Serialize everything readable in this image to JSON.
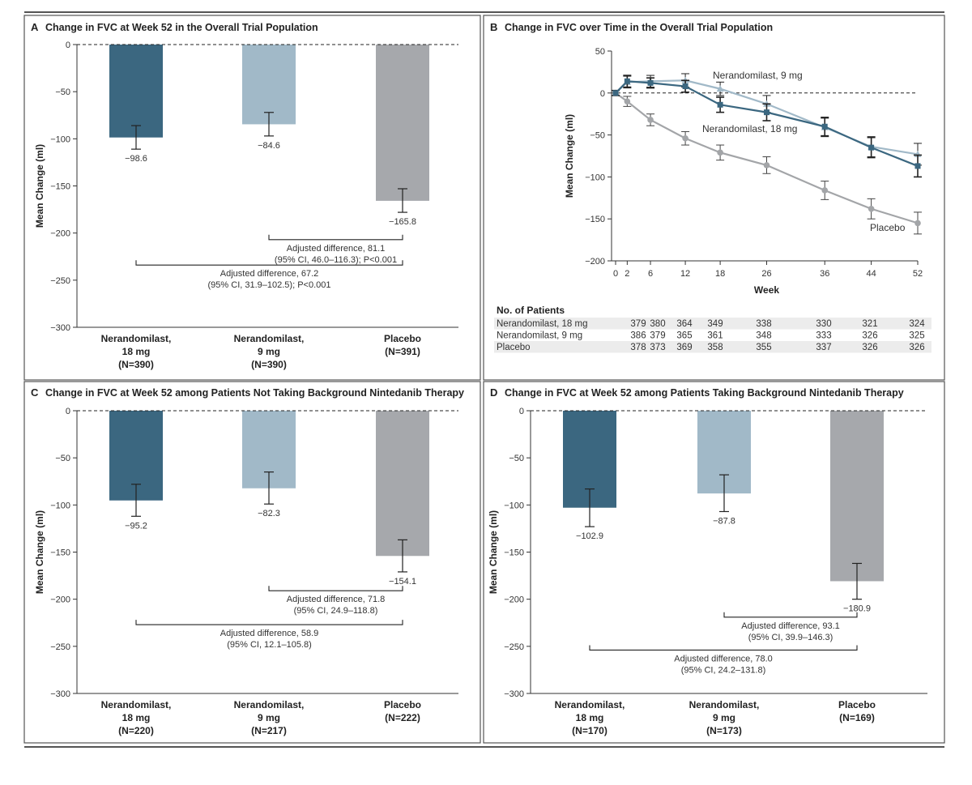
{
  "colors": {
    "nerandomilast_18": "#3b6780",
    "nerandomilast_9": "#a1b9c8",
    "placebo": "#a6a8ac",
    "placebo_line": "#a3a5a8",
    "panel_border": "#555555",
    "rule": "#555555"
  },
  "chart_data": [
    {
      "id": "A",
      "type": "bar",
      "letter": "A",
      "title": "Change in FVC at Week 52 in the Overall Trial Population",
      "ylabel": "Mean Change (ml)",
      "ylim": [
        -300,
        0
      ],
      "yticks": [
        0,
        -50,
        -100,
        -150,
        -200,
        -250,
        -300
      ],
      "ytick_labels": [
        "0",
        "−50",
        "−100",
        "−150",
        "−200",
        "−250",
        "−300"
      ],
      "grid": false,
      "categories": [
        {
          "line1": "Nerandomilast,",
          "line2": "18 mg",
          "line3": "(N=390)"
        },
        {
          "line1": "Nerandomilast,",
          "line2": "9 mg",
          "line3": "(N=390)"
        },
        {
          "line1": "Placebo",
          "line2": "(N=391)",
          "line3": ""
        }
      ],
      "values": [
        -98.6,
        -84.6,
        -165.8
      ],
      "value_labels": [
        "−98.6",
        "−84.6",
        "−165.8"
      ],
      "error": [
        [
          -111,
          -86
        ],
        [
          -97,
          -72
        ],
        [
          -178,
          -153
        ]
      ],
      "comparisons": [
        {
          "from": 1,
          "to": 2,
          "line1": "Adjusted difference, 81.1",
          "line2": "(95% CI, 46.0–116.3); P<0.001",
          "at": -207
        },
        {
          "from": 0,
          "to": 2,
          "line1": "Adjusted difference, 67.2",
          "line2": "(95% CI, 31.9–102.5); P<0.001",
          "at": -234
        }
      ]
    },
    {
      "id": "B",
      "type": "line",
      "letter": "B",
      "title": "Change in FVC over Time in the Overall Trial Population",
      "xlabel": "Week",
      "ylabel": "Mean Change (ml)",
      "xlim": [
        0,
        52
      ],
      "ylim": [
        -200,
        50
      ],
      "xticks": [
        0,
        2,
        6,
        12,
        18,
        26,
        36,
        44,
        52
      ],
      "yticks": [
        50,
        0,
        -50,
        -100,
        -150,
        -200
      ],
      "ytick_labels": [
        "50",
        "0",
        "−50",
        "−100",
        "−150",
        "−200"
      ],
      "x": [
        0,
        2,
        6,
        12,
        18,
        26,
        36,
        44,
        52
      ],
      "series": [
        {
          "name": "Nerandomilast, 18 mg",
          "label": "Nerandomilast, 18 mg",
          "marker": "square",
          "values": [
            0,
            14,
            12,
            8,
            -14,
            -23,
            -40,
            -65,
            -87
          ],
          "err": [
            3,
            7,
            6,
            7,
            9,
            10,
            11,
            12,
            13
          ]
        },
        {
          "name": "Nerandomilast, 9 mg",
          "label": "Nerandomilast, 9 mg",
          "marker": "triangle",
          "values": [
            0,
            13,
            14,
            15,
            5,
            -13,
            -41,
            -64,
            -73
          ],
          "err": [
            3,
            7,
            7,
            8,
            8,
            10,
            11,
            12,
            13
          ]
        },
        {
          "name": "Placebo",
          "label": "Placebo",
          "marker": "circle",
          "values": [
            0,
            -10,
            -32,
            -54,
            -71,
            -86,
            -116,
            -138,
            -155
          ],
          "err": [
            3,
            6,
            7,
            8,
            9,
            10,
            11,
            12,
            13
          ]
        }
      ],
      "patients": {
        "heading": "No. of Patients",
        "rows": [
          {
            "name": "Nerandomilast, 18 mg",
            "counts": [
              "379",
              "380",
              "364",
              "349",
              "338",
              "330",
              "321",
              "324"
            ]
          },
          {
            "name": "Nerandomilast, 9 mg",
            "counts": [
              "386",
              "379",
              "365",
              "361",
              "348",
              "333",
              "326",
              "325"
            ]
          },
          {
            "name": "Placebo",
            "counts": [
              "378",
              "373",
              "369",
              "358",
              "355",
              "337",
              "326",
              "326"
            ]
          }
        ]
      }
    },
    {
      "id": "C",
      "type": "bar",
      "letter": "C",
      "title": "Change in FVC at Week 52 among Patients Not Taking Background Nintedanib Therapy",
      "ylabel": "Mean Change (ml)",
      "ylim": [
        -300,
        0
      ],
      "yticks": [
        0,
        -50,
        -100,
        -150,
        -200,
        -250,
        -300
      ],
      "ytick_labels": [
        "0",
        "−50",
        "−100",
        "−150",
        "−200",
        "−250",
        "−300"
      ],
      "grid": false,
      "categories": [
        {
          "line1": "Nerandomilast,",
          "line2": "18 mg",
          "line3": "(N=220)"
        },
        {
          "line1": "Nerandomilast,",
          "line2": "9 mg",
          "line3": "(N=217)"
        },
        {
          "line1": "Placebo",
          "line2": "(N=222)",
          "line3": ""
        }
      ],
      "values": [
        -95.2,
        -82.3,
        -154.1
      ],
      "value_labels": [
        "−95.2",
        "−82.3",
        "−154.1"
      ],
      "error": [
        [
          -112,
          -78
        ],
        [
          -99,
          -65
        ],
        [
          -171,
          -137
        ]
      ],
      "comparisons": [
        {
          "from": 1,
          "to": 2,
          "line1": "Adjusted difference, 71.8",
          "line2": "(95% CI, 24.9–118.8)",
          "at": -191
        },
        {
          "from": 0,
          "to": 2,
          "line1": "Adjusted difference, 58.9",
          "line2": "(95% CI, 12.1–105.8)",
          "at": -227
        }
      ]
    },
    {
      "id": "D",
      "type": "bar",
      "letter": "D",
      "title": "Change in FVC at Week 52 among Patients Taking Background Nintedanib Therapy",
      "ylabel": "Mean Change (ml)",
      "ylim": [
        -300,
        0
      ],
      "yticks": [
        0,
        -50,
        -100,
        -150,
        -200,
        -250,
        -300
      ],
      "ytick_labels": [
        "0",
        "−50",
        "−100",
        "−150",
        "−200",
        "−250",
        "−300"
      ],
      "grid": false,
      "categories": [
        {
          "line1": "Nerandomilast,",
          "line2": "18 mg",
          "line3": "(N=170)"
        },
        {
          "line1": "Nerandomilast,",
          "line2": "9 mg",
          "line3": "(N=173)"
        },
        {
          "line1": "Placebo",
          "line2": "(N=169)",
          "line3": ""
        }
      ],
      "values": [
        -102.9,
        -87.8,
        -180.9
      ],
      "value_labels": [
        "−102.9",
        "−87.8",
        "−180.9"
      ],
      "error": [
        [
          -123,
          -83
        ],
        [
          -107,
          -68
        ],
        [
          -200,
          -162
        ]
      ],
      "comparisons": [
        {
          "from": 1,
          "to": 2,
          "line1": "Adjusted difference, 93.1",
          "line2": "(95% CI, 39.9–146.3)",
          "at": -219
        },
        {
          "from": 0,
          "to": 2,
          "line1": "Adjusted difference, 78.0",
          "line2": "(95% CI, 24.2–131.8)",
          "at": -254
        }
      ]
    }
  ]
}
